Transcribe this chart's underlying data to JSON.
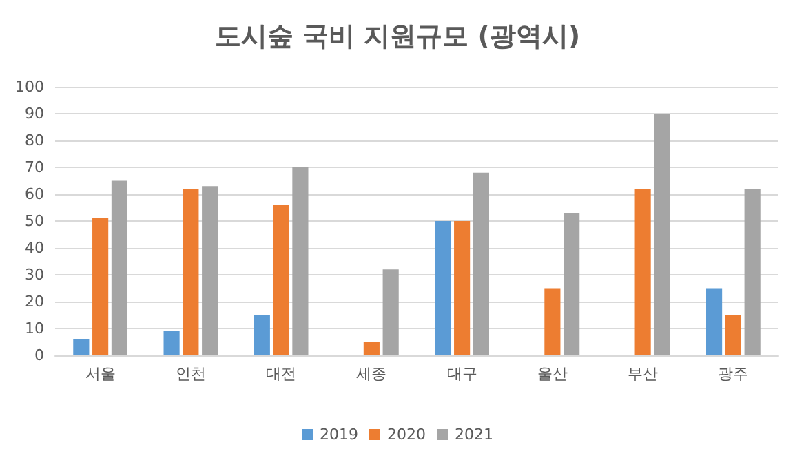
{
  "chart_data": {
    "type": "bar",
    "title": "도시숲 국비 지원규모 (광역시)",
    "categories": [
      "서울",
      "인천",
      "대전",
      "세종",
      "대구",
      "울산",
      "부산",
      "광주"
    ],
    "series": [
      {
        "name": "2019",
        "color": "#5b9bd5",
        "values": [
          6,
          9,
          15,
          0,
          50,
          0,
          0,
          25
        ]
      },
      {
        "name": "2020",
        "color": "#ed7d31",
        "values": [
          51,
          62,
          56,
          5,
          50,
          25,
          62,
          15
        ]
      },
      {
        "name": "2021",
        "color": "#a5a5a5",
        "values": [
          65,
          63,
          70,
          32,
          68,
          53,
          90,
          62
        ]
      }
    ],
    "ylim": [
      0,
      100
    ],
    "yticks": [
      0,
      10,
      20,
      30,
      40,
      50,
      60,
      70,
      80,
      90,
      100
    ],
    "grid": "y",
    "legend": "bottom"
  }
}
